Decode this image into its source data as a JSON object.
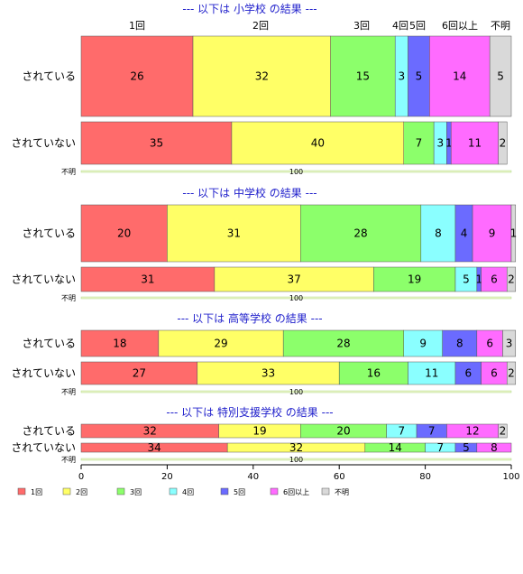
{
  "chart_data": {
    "type": "bar",
    "orientation": "horizontal",
    "stacked": true,
    "percent": true,
    "xlim": [
      0,
      100
    ],
    "xticks": [
      0,
      20,
      40,
      60,
      80,
      100
    ],
    "legend_position": "bottom-left",
    "categories": [
      "1回",
      "2回",
      "3回",
      "4回",
      "5回",
      "6回以上",
      "不明"
    ],
    "colors": [
      "#ff6b6b",
      "#ffff66",
      "#8cff6b",
      "#8affff",
      "#6b6bff",
      "#ff6bff",
      "#d9d9d9"
    ],
    "unknown_label": "不明",
    "unknown_value": "100",
    "groups": [
      {
        "title": "--- 以下は 小学校 の結果 ---",
        "rows": [
          {
            "label": "されている",
            "values": [
              26,
              32,
              15,
              3,
              5,
              14,
              5
            ]
          },
          {
            "label": "されていない",
            "values": [
              35,
              40,
              7,
              3,
              1,
              11,
              2
            ]
          }
        ]
      },
      {
        "title": "--- 以下は 中学校 の結果 ---",
        "rows": [
          {
            "label": "されている",
            "values": [
              20,
              31,
              28,
              8,
              4,
              9,
              1
            ]
          },
          {
            "label": "されていない",
            "values": [
              31,
              37,
              19,
              5,
              1,
              6,
              2
            ]
          }
        ]
      },
      {
        "title": "--- 以下は 高等学校 の結果 ---",
        "rows": [
          {
            "label": "されている",
            "values": [
              18,
              29,
              28,
              9,
              8,
              6,
              3
            ]
          },
          {
            "label": "されていない",
            "values": [
              27,
              33,
              16,
              11,
              6,
              6,
              2
            ]
          }
        ]
      },
      {
        "title": "--- 以下は 特別支援学校 の結果 ---",
        "rows": [
          {
            "label": "されている",
            "values": [
              32,
              19,
              20,
              7,
              7,
              12,
              2
            ]
          },
          {
            "label": "されていない",
            "values": [
              34,
              32,
              14,
              7,
              5,
              8,
              0
            ]
          }
        ]
      }
    ]
  }
}
